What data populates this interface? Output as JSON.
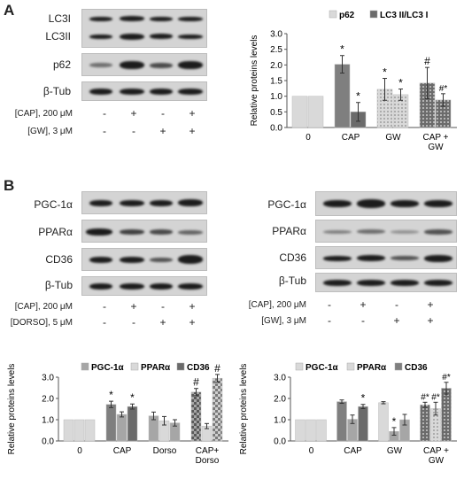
{
  "panelA": {
    "label": "A",
    "blot_labels": [
      "LC3I",
      "LC3II",
      "p62",
      "β-Tub"
    ],
    "treatments": [
      {
        "label": "[CAP],  200 μM",
        "signs": [
          "-",
          "+",
          "-",
          "+"
        ]
      },
      {
        "label": "[GW], 3 μM",
        "signs": [
          "-",
          "-",
          "+",
          "+"
        ]
      }
    ]
  },
  "panelB": {
    "label": "B",
    "left_blot_labels": [
      "PGC-1α",
      "PPARα",
      "CD36",
      "β-Tub"
    ],
    "left_treatments": [
      {
        "label": "[CAP],  200 μM",
        "signs": [
          "-",
          "+",
          "-",
          "+"
        ]
      },
      {
        "label": "[DORSO], 5 μM",
        "signs": [
          "-",
          "-",
          "+",
          "+"
        ]
      }
    ],
    "right_blot_labels": [
      "PGC-1α",
      "PPARα",
      "CD36",
      "β-Tub"
    ],
    "right_treatments": [
      {
        "label": "[CAP],  200 μM",
        "signs": [
          "-",
          "+",
          "-",
          "+"
        ]
      },
      {
        "label": "[GW], 3 μM",
        "signs": [
          "-",
          "-",
          "+",
          "+"
        ]
      }
    ]
  },
  "colors": {
    "series_light": "#d9d9d9",
    "series_mid": "#a6a6a6",
    "series_dark": "#7f7f7f",
    "series_darker": "#6b6b6b"
  },
  "chart_data": [
    {
      "id": "A",
      "type": "bar",
      "ylabel": "Relative proteins levels",
      "ylim": [
        0,
        3.0
      ],
      "yticks": [
        "0.0",
        "0.5",
        "1.0",
        "1.5",
        "2.0",
        "2.5",
        "3.0"
      ],
      "categories": [
        "0",
        "CAP",
        "GW",
        "CAP +|GW"
      ],
      "legend": [
        "p62",
        "LC3 II/LC3 I"
      ],
      "series": [
        {
          "name": "p62",
          "values": [
            1.0,
            2.02,
            1.22,
            1.42
          ],
          "errors": [
            0.0,
            0.28,
            0.35,
            0.5
          ],
          "annotations": [
            "",
            "*",
            "*",
            "#"
          ]
        },
        {
          "name": "LC3 II/LC3 I",
          "values": [
            1.0,
            0.5,
            1.05,
            0.88
          ],
          "errors": [
            0.0,
            0.3,
            0.18,
            0.2
          ],
          "annotations": [
            "",
            "*",
            "*",
            "#*"
          ]
        }
      ]
    },
    {
      "id": "B-left",
      "type": "bar",
      "ylabel": "Relative proteins levels",
      "ylim": [
        0,
        3.0
      ],
      "yticks": [
        "0.0",
        "1.0",
        "2.0",
        "3.0"
      ],
      "categories": [
        "0",
        "CAP",
        "Dorso",
        "CAP+|Dorso"
      ],
      "legend": [
        "PGC-1α",
        "PPARα",
        "CD36"
      ],
      "series": [
        {
          "name": "PGC-1α",
          "values": [
            1.0,
            1.72,
            1.18,
            2.3
          ],
          "errors": [
            0.0,
            0.15,
            0.18,
            0.17
          ],
          "annotations": [
            "",
            "*",
            "",
            "#"
          ]
        },
        {
          "name": "PPARα",
          "values": [
            1.0,
            1.25,
            0.95,
            0.7
          ],
          "errors": [
            0.0,
            0.12,
            0.2,
            0.12
          ],
          "annotations": [
            "",
            "",
            "",
            ""
          ]
        },
        {
          "name": "CD36",
          "values": [
            1.0,
            1.62,
            0.85,
            2.95
          ],
          "errors": [
            0.0,
            0.12,
            0.15,
            0.18
          ],
          "annotations": [
            "",
            "*",
            "",
            "#"
          ]
        }
      ]
    },
    {
      "id": "B-right",
      "type": "bar",
      "ylabel": "Relative proteins levels",
      "ylim": [
        0,
        3.0
      ],
      "yticks": [
        "0.0",
        "1.0",
        "2.0",
        "3.0"
      ],
      "categories": [
        "0",
        "CAP",
        "GW",
        "CAP +|GW"
      ],
      "legend": [
        "PGC-1α",
        "PPARα",
        "CD36"
      ],
      "series": [
        {
          "name": "PGC-1α",
          "values": [
            1.0,
            1.85,
            1.8,
            1.7
          ],
          "errors": [
            0.0,
            0.08,
            0.05,
            0.12
          ],
          "annotations": [
            "",
            "",
            "",
            "#*"
          ]
        },
        {
          "name": "PPARα",
          "values": [
            1.0,
            1.02,
            0.45,
            1.52
          ],
          "errors": [
            0.0,
            0.2,
            0.18,
            0.3
          ],
          "annotations": [
            "",
            "",
            "*",
            "#*"
          ]
        },
        {
          "name": "CD36",
          "values": [
            1.0,
            1.62,
            1.0,
            2.48
          ],
          "errors": [
            0.0,
            0.1,
            0.25,
            0.28
          ],
          "annotations": [
            "",
            "*",
            "",
            "#*"
          ]
        }
      ]
    }
  ]
}
